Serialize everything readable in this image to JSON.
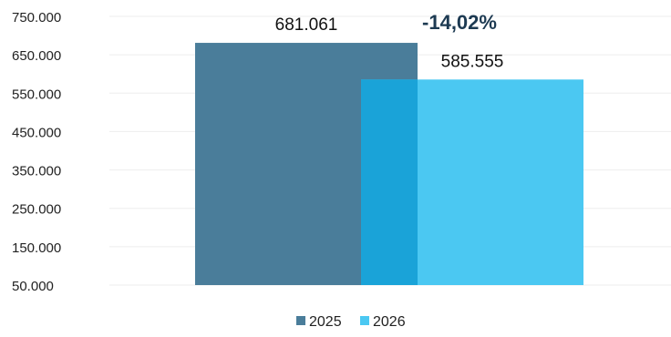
{
  "chart_data": {
    "type": "bar",
    "categories": [
      "2025",
      "2026"
    ],
    "values": [
      681061,
      585555
    ],
    "value_labels": [
      "681.061",
      "585.555"
    ],
    "change_label": "-14,02%",
    "series": [
      {
        "name": "2025",
        "value": 681061,
        "color": "#4a7d9a"
      },
      {
        "name": "2026",
        "value": 585555,
        "color": "#4bc8f2"
      }
    ],
    "overlap_color": "#1aa3d8",
    "y_ticks": [
      "750.000",
      "650.000",
      "550.000",
      "450.000",
      "350.000",
      "250.000",
      "150.000",
      "50.000"
    ],
    "ylim": [
      50000,
      750000
    ],
    "grid": true,
    "legend_position": "bottom",
    "title": "",
    "xlabel": "",
    "ylabel": ""
  }
}
